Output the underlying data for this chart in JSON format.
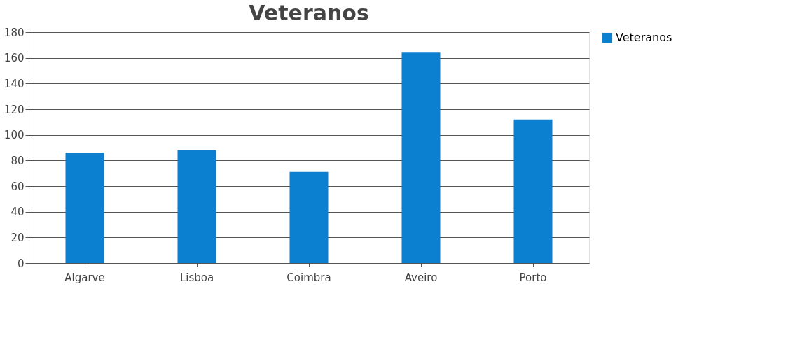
{
  "chart_data": {
    "type": "bar",
    "title": "Veteranos",
    "categories": [
      "Algarve",
      "Lisboa",
      "Coimbra",
      "Aveiro",
      "Porto"
    ],
    "series": [
      {
        "name": "Veteranos",
        "color": "#0b7fd0",
        "values": [
          86,
          88,
          71,
          164,
          112
        ]
      }
    ],
    "ylim": [
      0,
      180
    ],
    "yticks": [
      0,
      20,
      40,
      60,
      80,
      100,
      120,
      140,
      160,
      180
    ],
    "grid": "y",
    "legend": "right"
  }
}
